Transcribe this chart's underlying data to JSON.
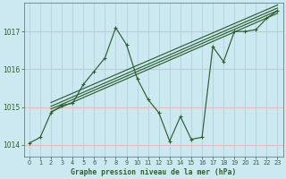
{
  "title": "Graphe pression niveau de la mer (hPa)",
  "bg_color": "#cce8f0",
  "plot_bg_color": "#cce8f0",
  "grid_h_color": "#f0b8b8",
  "grid_v_color": "#b8d8e0",
  "line_color": "#2d6030",
  "xlim": [
    -0.5,
    23.5
  ],
  "ylim": [
    1013.7,
    1017.75
  ],
  "yticks": [
    1014,
    1015,
    1016,
    1017
  ],
  "xticks": [
    0,
    1,
    2,
    3,
    4,
    5,
    6,
    7,
    8,
    9,
    10,
    11,
    12,
    13,
    14,
    15,
    16,
    17,
    18,
    19,
    20,
    21,
    22,
    23
  ],
  "main_x": [
    0,
    1,
    2,
    3,
    4,
    5,
    6,
    7,
    8,
    9,
    10,
    11,
    12,
    13,
    14,
    15,
    16,
    17,
    18,
    19,
    20,
    21,
    22,
    23
  ],
  "main_y": [
    1014.05,
    1014.2,
    1014.85,
    1015.05,
    1015.1,
    1015.6,
    1015.95,
    1016.3,
    1017.1,
    1016.65,
    1015.75,
    1015.2,
    1014.85,
    1014.1,
    1014.75,
    1014.15,
    1014.2,
    1016.6,
    1016.2,
    1017.0,
    1017.0,
    1017.05,
    1017.35,
    1017.55
  ],
  "trend_lines": [
    {
      "x": [
        2,
        23
      ],
      "y": [
        1014.88,
        1017.48
      ]
    },
    {
      "x": [
        2,
        23
      ],
      "y": [
        1014.95,
        1017.55
      ]
    },
    {
      "x": [
        2,
        23
      ],
      "y": [
        1015.02,
        1017.62
      ]
    },
    {
      "x": [
        2,
        23
      ],
      "y": [
        1015.12,
        1017.7
      ]
    }
  ]
}
